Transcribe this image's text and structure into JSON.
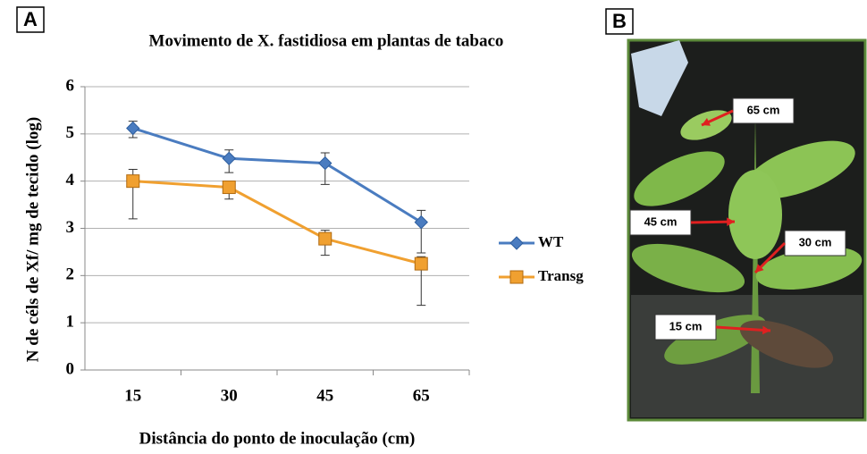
{
  "chart_data": {
    "type": "line",
    "panel_label": "A",
    "title": "Movimento de X. fastidiosa em plantas de tabaco",
    "x_label": "Distância do ponto de inoculação (cm)",
    "y_label": "N de céls de Xf/ mg de tecido (log)",
    "categories": [
      "15",
      "30",
      "45",
      "65"
    ],
    "series": [
      {
        "name": "WT",
        "color": "#4a7cc0",
        "marker": "diamond",
        "values": [
          5.12,
          4.48,
          4.38,
          3.13
        ],
        "errors_minus": [
          0.2,
          0.3,
          0.45,
          0.65
        ],
        "errors_plus": [
          0.15,
          0.18,
          0.22,
          0.25
        ]
      },
      {
        "name": "Transg",
        "color": "#f0a030",
        "marker": "square",
        "values": [
          4.0,
          3.87,
          2.78,
          2.25
        ],
        "errors_minus": [
          0.8,
          0.25,
          0.35,
          0.88
        ],
        "errors_plus": [
          0.25,
          0.1,
          0.18,
          0.15
        ]
      }
    ],
    "ylim": [
      0,
      6
    ],
    "yticks": [
      0,
      1,
      2,
      3,
      4,
      5,
      6
    ],
    "grid": true,
    "legend": "right"
  },
  "photo": {
    "label": "B",
    "annotations": [
      "65 cm",
      "45 cm",
      "30 cm",
      "15 cm"
    ]
  }
}
